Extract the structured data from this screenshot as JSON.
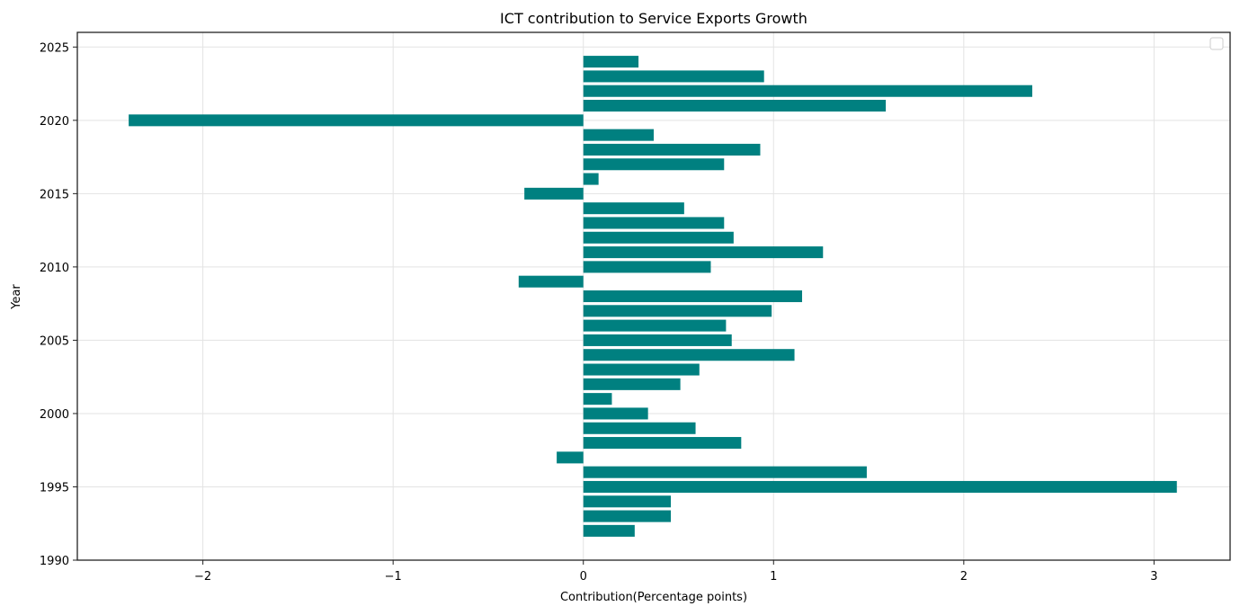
{
  "chart_data": {
    "type": "bar",
    "orientation": "horizontal",
    "title": "ICT contribution to Service Exports Growth",
    "xlabel": "Contribution(Percentage points)",
    "ylabel": "Year",
    "xlim": [
      -2.66,
      3.4
    ],
    "ylim": [
      1990,
      2026
    ],
    "xticks": [
      -2,
      -1,
      0,
      1,
      2,
      3
    ],
    "xtick_labels": [
      "−2",
      "−1",
      "0",
      "1",
      "2",
      "3"
    ],
    "yticks": [
      1990,
      1995,
      2000,
      2005,
      2010,
      2015,
      2020,
      2025
    ],
    "ytick_labels": [
      "1990",
      "1995",
      "2000",
      "2005",
      "2010",
      "2015",
      "2020",
      "2025"
    ],
    "grid": true,
    "legend": {
      "placement": "top-right",
      "entries": []
    },
    "bar_color": "#008080",
    "categories": [
      1992,
      1993,
      1994,
      1995,
      1996,
      1997,
      1998,
      1999,
      2000,
      2001,
      2002,
      2003,
      2004,
      2005,
      2006,
      2007,
      2008,
      2009,
      2010,
      2011,
      2012,
      2013,
      2014,
      2015,
      2016,
      2017,
      2018,
      2019,
      2020,
      2021,
      2022,
      2023,
      2024
    ],
    "values": [
      0.27,
      0.46,
      0.46,
      3.12,
      1.49,
      -0.14,
      0.83,
      0.59,
      0.34,
      0.15,
      0.51,
      0.61,
      1.11,
      0.78,
      0.75,
      0.99,
      1.15,
      -0.34,
      0.67,
      1.26,
      0.79,
      0.74,
      0.53,
      -0.31,
      0.08,
      0.74,
      0.93,
      0.37,
      -2.39,
      1.59,
      2.36,
      0.95,
      0.29
    ]
  }
}
